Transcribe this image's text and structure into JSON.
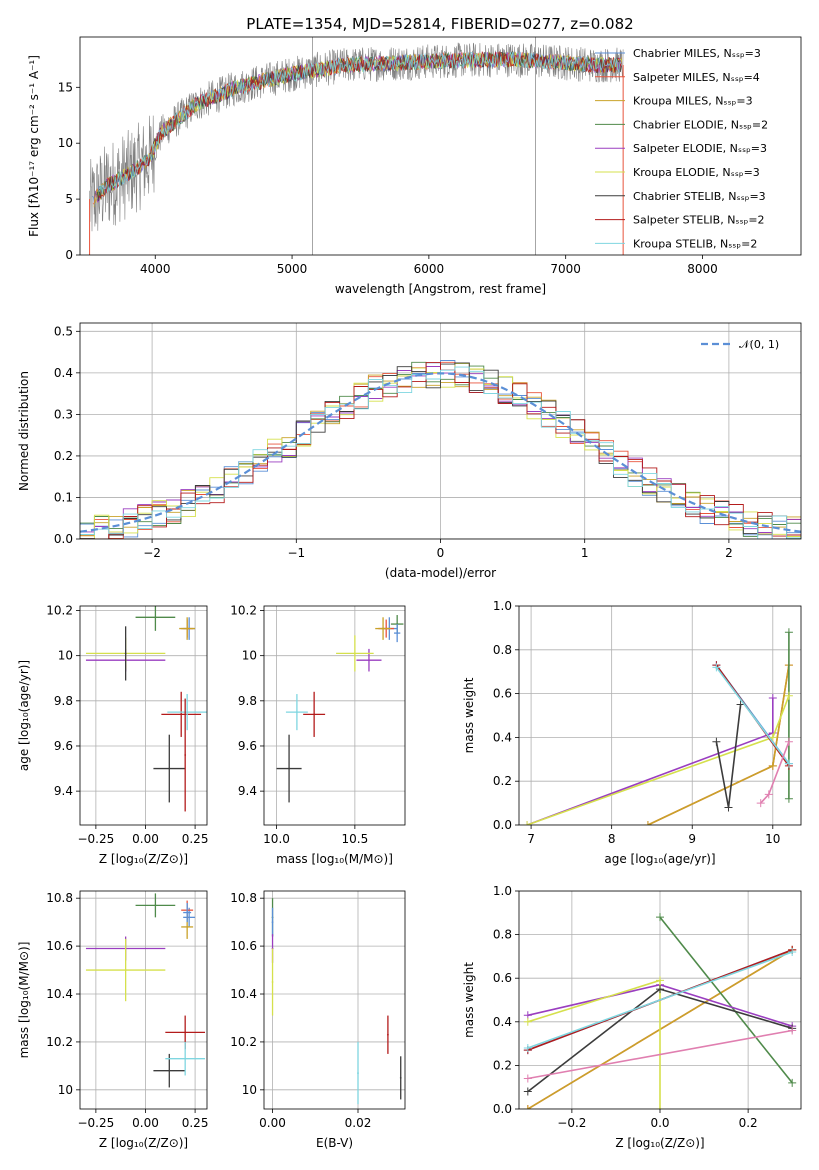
{
  "figure_title": "PLATE=1354, MJD=52814, FIBERID=0277, z=0.082",
  "series_colors": [
    "#5b8fd6",
    "#e8543c",
    "#c9a22a",
    "#4f8a4a",
    "#9a3ec0",
    "#d5e04c",
    "#3c3c3c",
    "#b31b1b",
    "#7fd6e0"
  ],
  "chart_data": [
    {
      "id": "spectrum",
      "type": "line",
      "title": "PLATE=1354, MJD=52814, FIBERID=0277, z=0.082",
      "xlabel": "wavelength [Angstrom, rest frame]",
      "ylabel": "Flux [fλ10⁻¹⁷ erg cm⁻² s⁻¹ A⁻¹]",
      "xlim": [
        3450,
        8720
      ],
      "ylim": [
        0,
        19.5
      ],
      "xticks": [
        4000,
        5000,
        6000,
        7000,
        8000
      ],
      "yticks": [
        0,
        5,
        10,
        15
      ],
      "grid": false,
      "legend": "top-right",
      "data_color": "#808080",
      "continuum": {
        "x": [
          3520,
          3650,
          3800,
          3950,
          4050,
          4300,
          4600,
          5000,
          5400,
          5800,
          6200,
          6600,
          7000,
          7200,
          7420
        ],
        "y": [
          4.5,
          6.2,
          7.2,
          8.5,
          11.0,
          13.5,
          15.0,
          16.2,
          17.0,
          17.2,
          17.4,
          17.5,
          17.2,
          17.0,
          17.0
        ]
      },
      "series": [
        {
          "name": "Chabrier MILES, N_SSP=3"
        },
        {
          "name": "Salpeter MILES, N_SSP=4"
        },
        {
          "name": "Kroupa MILES, N_SSP=3"
        },
        {
          "name": "Chabrier ELODIE, N_SSP=2"
        },
        {
          "name": "Salpeter ELODIE, N_SSP=3"
        },
        {
          "name": "Kroupa ELODIE, N_SSP=3"
        },
        {
          "name": "Chabrier STELIB, N_SSP=3"
        },
        {
          "name": "Salpeter STELIB, N_SSP=2"
        },
        {
          "name": "Kroupa STELIB, N_SSP=2"
        }
      ]
    },
    {
      "id": "normed",
      "type": "line",
      "xlabel": "(data-model)/error",
      "ylabel": "Normed distribution",
      "xlim": [
        -2.5,
        2.5
      ],
      "ylim": [
        0,
        0.52
      ],
      "xticks": [
        -2,
        -1,
        0,
        1,
        2
      ],
      "xtick_labels": [
        "−2",
        "−1",
        "0",
        "1",
        "2"
      ],
      "yticks": [
        0.0,
        0.1,
        0.2,
        0.3,
        0.4,
        0.5
      ],
      "grid": true,
      "legend": "top-right",
      "legend_label": "𝒩(0, 1)",
      "gaussian_color": "#5b8fd6",
      "hist_bin_width": 0.1
    },
    {
      "id": "age-vs-Z",
      "type": "scatter",
      "xlabel": "Z [log₁₀(Z/Z⊙)]",
      "ylabel": "age [log₁₀(age/yr)]",
      "xlim": [
        -0.33,
        0.31
      ],
      "ylim": [
        9.25,
        10.22
      ],
      "xticks": [
        -0.25,
        0.0,
        0.25
      ],
      "xtick_labels": [
        "−0.25",
        "0.00",
        "0.25"
      ],
      "yticks": [
        9.4,
        9.6,
        9.8,
        10.0,
        10.2
      ],
      "grid": true,
      "points": [
        {
          "series": 0,
          "x": 0.22,
          "y": 10.12,
          "xerr": 0.03,
          "yerr": 0.05
        },
        {
          "series": 1,
          "x": 0.21,
          "y": 10.12,
          "xerr": 0.03,
          "yerr": 0.04
        },
        {
          "series": 2,
          "x": 0.21,
          "y": 10.12,
          "xerr": 0.04,
          "yerr": 0.05
        },
        {
          "series": 3,
          "x": 0.05,
          "y": 10.17,
          "xerr": 0.1,
          "yerr": 0.06
        },
        {
          "series": 4,
          "x": -0.1,
          "y": 9.98,
          "xerr": 0.2,
          "yerr": 0.05
        },
        {
          "series": 5,
          "x": -0.1,
          "y": 10.01,
          "xerr": 0.2,
          "yerr": 0.07
        },
        {
          "series": 6,
          "x": 0.12,
          "y": 9.5,
          "xerr": 0.08,
          "yerr": 0.15
        },
        {
          "series": 7,
          "x": 0.18,
          "y": 9.74,
          "xerr": 0.1,
          "yerr": 0.1
        },
        {
          "series": 8,
          "x": 0.21,
          "y": 9.75,
          "xerr": 0.1,
          "yerr": 0.08
        },
        {
          "series": 6,
          "x": -0.1,
          "y": 10.01,
          "xerr": 0.0,
          "yerr": 0.12
        },
        {
          "series": 7,
          "x": 0.2,
          "y": 9.56,
          "xerr": 0.0,
          "yerr": 0.25
        }
      ]
    },
    {
      "id": "age-vs-mass",
      "type": "scatter",
      "xlabel": "mass [log₁₀(M/M⊙)]",
      "ylabel": "",
      "xlim": [
        9.92,
        10.82
      ],
      "ylim": [
        9.25,
        10.22
      ],
      "xticks": [
        10.0,
        10.5
      ],
      "xtick_labels": [
        "10.0",
        "10.5"
      ],
      "yticks": [
        9.4,
        9.6,
        9.8,
        10.0,
        10.2
      ],
      "grid": true,
      "points": [
        {
          "series": 0,
          "x": 10.72,
          "y": 10.12,
          "xerr": 0.05,
          "yerr": 0.05
        },
        {
          "series": 1,
          "x": 10.7,
          "y": 10.12,
          "xerr": 0.05,
          "yerr": 0.04
        },
        {
          "series": 2,
          "x": 10.68,
          "y": 10.12,
          "xerr": 0.05,
          "yerr": 0.05
        },
        {
          "series": 3,
          "x": 10.77,
          "y": 10.14,
          "xerr": 0.04,
          "yerr": 0.04
        },
        {
          "series": 4,
          "x": 10.59,
          "y": 9.98,
          "xerr": 0.08,
          "yerr": 0.05
        },
        {
          "series": 5,
          "x": 10.5,
          "y": 10.01,
          "xerr": 0.12,
          "yerr": 0.08
        },
        {
          "series": 6,
          "x": 10.08,
          "y": 9.5,
          "xerr": 0.08,
          "yerr": 0.15
        },
        {
          "series": 7,
          "x": 10.24,
          "y": 9.74,
          "xerr": 0.07,
          "yerr": 0.1
        },
        {
          "series": 8,
          "x": 10.13,
          "y": 9.75,
          "xerr": 0.07,
          "yerr": 0.08
        },
        {
          "series": 0,
          "x": 10.77,
          "y": 10.1,
          "xerr": 0.02,
          "yerr": 0.04
        }
      ]
    },
    {
      "id": "weight-vs-age",
      "type": "line",
      "xlabel": "age [log₁₀(age/yr)]",
      "ylabel": "mass weight",
      "xlim": [
        6.85,
        10.35
      ],
      "ylim": [
        0,
        1.0
      ],
      "xticks": [
        7,
        8,
        9,
        10
      ],
      "yticks": [
        0.0,
        0.2,
        0.4,
        0.6,
        0.8,
        1.0
      ],
      "grid": true,
      "series": [
        {
          "x": [
            9.3,
            10.2
          ],
          "y": [
            0.73,
            0.28
          ]
        },
        {
          "x": [
            8.45,
            10.0,
            10.2
          ],
          "y": [
            0.0,
            0.27,
            0.73
          ]
        },
        {
          "x": [
            8.45,
            10.0,
            10.2
          ],
          "y": [
            0.0,
            0.27,
            0.73
          ]
        },
        {
          "x": [
            10.2,
            10.2
          ],
          "y": [
            0.88,
            0.12
          ]
        },
        {
          "x": [
            6.95,
            10.0,
            10.0
          ],
          "y": [
            0.0,
            0.42,
            0.58
          ]
        },
        {
          "x": [
            6.95,
            10.0,
            10.2
          ],
          "y": [
            0.0,
            0.4,
            0.59
          ]
        },
        {
          "x": [
            9.3,
            9.45,
            9.6
          ],
          "y": [
            0.38,
            0.08,
            0.55
          ]
        },
        {
          "x": [
            9.3,
            10.2
          ],
          "y": [
            0.73,
            0.27
          ]
        },
        {
          "x": [
            9.3,
            10.2
          ],
          "y": [
            0.72,
            0.28
          ]
        },
        {
          "x": [
            9.85,
            9.95,
            10.2
          ],
          "y": [
            0.1,
            0.14,
            0.38
          ]
        }
      ]
    },
    {
      "id": "mass-vs-Z",
      "type": "scatter",
      "xlabel": "Z [log₁₀(Z/Z⊙)]",
      "ylabel": "mass [log₁₀(M/M⊙)]",
      "xlim": [
        -0.33,
        0.31
      ],
      "ylim": [
        9.92,
        10.83
      ],
      "xticks": [
        -0.25,
        0.0,
        0.25
      ],
      "xtick_labels": [
        "−0.25",
        "0.00",
        "0.25"
      ],
      "yticks": [
        10.0,
        10.2,
        10.4,
        10.6,
        10.8
      ],
      "grid": true,
      "points": [
        {
          "series": 0,
          "x": 0.22,
          "y": 10.72,
          "xerr": 0.03,
          "yerr": 0.04
        },
        {
          "series": 1,
          "x": 0.21,
          "y": 10.75,
          "xerr": 0.03,
          "yerr": 0.04
        },
        {
          "series": 2,
          "x": 0.21,
          "y": 10.68,
          "xerr": 0.03,
          "yerr": 0.05
        },
        {
          "series": 3,
          "x": 0.05,
          "y": 10.77,
          "xerr": 0.1,
          "yerr": 0.05
        },
        {
          "series": 4,
          "x": -0.1,
          "y": 10.59,
          "xerr": 0.2,
          "yerr": 0.05
        },
        {
          "series": 5,
          "x": -0.1,
          "y": 10.5,
          "xerr": 0.2,
          "yerr": 0.13
        },
        {
          "series": 6,
          "x": 0.12,
          "y": 10.08,
          "xerr": 0.08,
          "yerr": 0.07
        },
        {
          "series": 7,
          "x": 0.2,
          "y": 10.24,
          "xerr": 0.1,
          "yerr": 0.07
        },
        {
          "series": 8,
          "x": 0.2,
          "y": 10.13,
          "xerr": 0.1,
          "yerr": 0.07
        },
        {
          "series": 0,
          "x": 0.21,
          "y": 10.74,
          "xerr": 0.02,
          "yerr": 0.04
        }
      ]
    },
    {
      "id": "mass-vs-ebv",
      "type": "scatter",
      "xlabel": "E(B-V)",
      "ylabel": "",
      "xlim": [
        -0.002,
        0.031
      ],
      "ylim": [
        9.92,
        10.83
      ],
      "xticks": [
        0.0,
        0.02
      ],
      "xtick_labels": [
        "0.00",
        "0.02"
      ],
      "yticks": [
        10.0,
        10.2,
        10.4,
        10.6,
        10.8
      ],
      "grid": true,
      "points": [
        {
          "series": 3,
          "x": 0.0,
          "y": 10.72,
          "xerr": 0.0,
          "yerr": 0.08
        },
        {
          "series": 0,
          "x": 0.0,
          "y": 10.7,
          "xerr": 0.0,
          "yerr": 0.06
        },
        {
          "series": 4,
          "x": 0.0,
          "y": 10.59,
          "xerr": 0.0,
          "yerr": 0.06
        },
        {
          "series": 5,
          "x": 0.0,
          "y": 10.45,
          "xerr": 0.0,
          "yerr": 0.14
        },
        {
          "series": 8,
          "x": 0.02,
          "y": 10.07,
          "xerr": 0.0,
          "yerr": 0.13
        },
        {
          "series": 7,
          "x": 0.027,
          "y": 10.23,
          "xerr": 0.0,
          "yerr": 0.08
        },
        {
          "series": 6,
          "x": 0.03,
          "y": 10.05,
          "xerr": 0.0,
          "yerr": 0.09
        }
      ]
    },
    {
      "id": "weight-vs-Z",
      "type": "line",
      "xlabel": "Z [log₁₀(Z/Z⊙)]",
      "ylabel": "mass weight",
      "xlim": [
        -0.32,
        0.32
      ],
      "ylim": [
        0,
        1.0
      ],
      "xticks": [
        -0.2,
        0.0,
        0.2
      ],
      "xtick_labels": [
        "−0.2",
        "0.0",
        "0.2"
      ],
      "yticks": [
        0.0,
        0.2,
        0.4,
        0.6,
        0.8,
        1.0
      ],
      "grid": true,
      "series": [
        {
          "x": [
            -0.3,
            0.3
          ],
          "y": [
            0.27,
            0.73
          ]
        },
        {
          "x": [
            -0.3,
            0.3
          ],
          "y": [
            0.0,
            0.73
          ]
        },
        {
          "x": [
            -0.3,
            0.3
          ],
          "y": [
            0.0,
            0.73
          ]
        },
        {
          "x": [
            0.0,
            0.3
          ],
          "y": [
            0.88,
            0.12
          ]
        },
        {
          "x": [
            -0.3,
            0.0,
            0.3
          ],
          "y": [
            0.43,
            0.57,
            0.38
          ]
        },
        {
          "x": [
            -0.3,
            0.0,
            0.0
          ],
          "y": [
            0.4,
            0.59,
            0.0
          ]
        },
        {
          "x": [
            -0.3,
            0.0,
            0.3
          ],
          "y": [
            0.08,
            0.55,
            0.37
          ]
        },
        {
          "x": [
            -0.3,
            0.3
          ],
          "y": [
            0.27,
            0.73
          ]
        },
        {
          "x": [
            -0.3,
            0.3
          ],
          "y": [
            0.28,
            0.72
          ]
        },
        {
          "x": [
            -0.3,
            0.3
          ],
          "y": [
            0.14,
            0.36
          ]
        }
      ]
    }
  ]
}
